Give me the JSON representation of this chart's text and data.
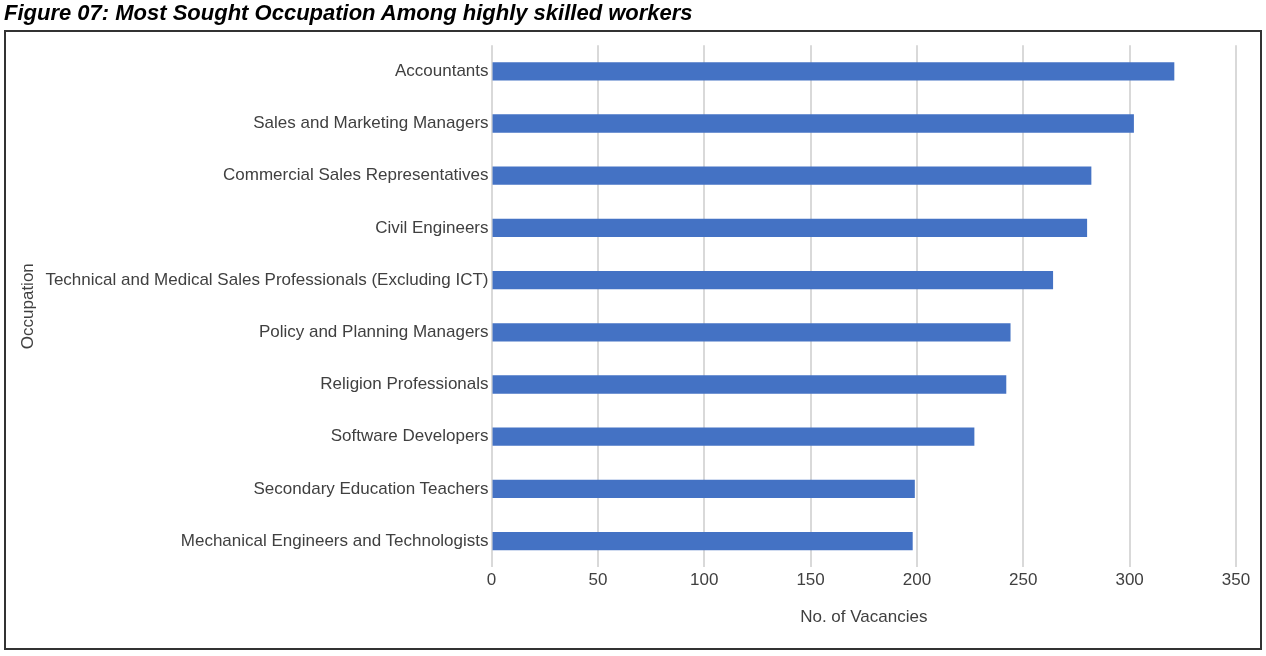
{
  "chart_data": {
    "type": "bar",
    "orientation": "horizontal",
    "title": "Figure 07: Most Sought Occupation Among highly skilled workers",
    "xlabel": "No. of Vacancies",
    "ylabel": "Occupation",
    "categories": [
      "Accountants",
      "Sales and Marketing Managers",
      "Commercial Sales Representatives",
      "Civil Engineers",
      "Technical and Medical Sales Professionals (Excluding ICT)",
      "Policy and Planning Managers",
      "Religion Professionals",
      "Software Developers",
      "Secondary Education Teachers",
      "Mechanical Engineers and Technologists"
    ],
    "values": [
      321,
      302,
      282,
      280,
      264,
      244,
      242,
      227,
      199,
      198
    ],
    "color": "#4472c4",
    "xlim": [
      0,
      350
    ],
    "xticks": [
      0,
      50,
      100,
      150,
      200,
      250,
      300,
      350
    ],
    "grid": "x",
    "legend": false
  }
}
